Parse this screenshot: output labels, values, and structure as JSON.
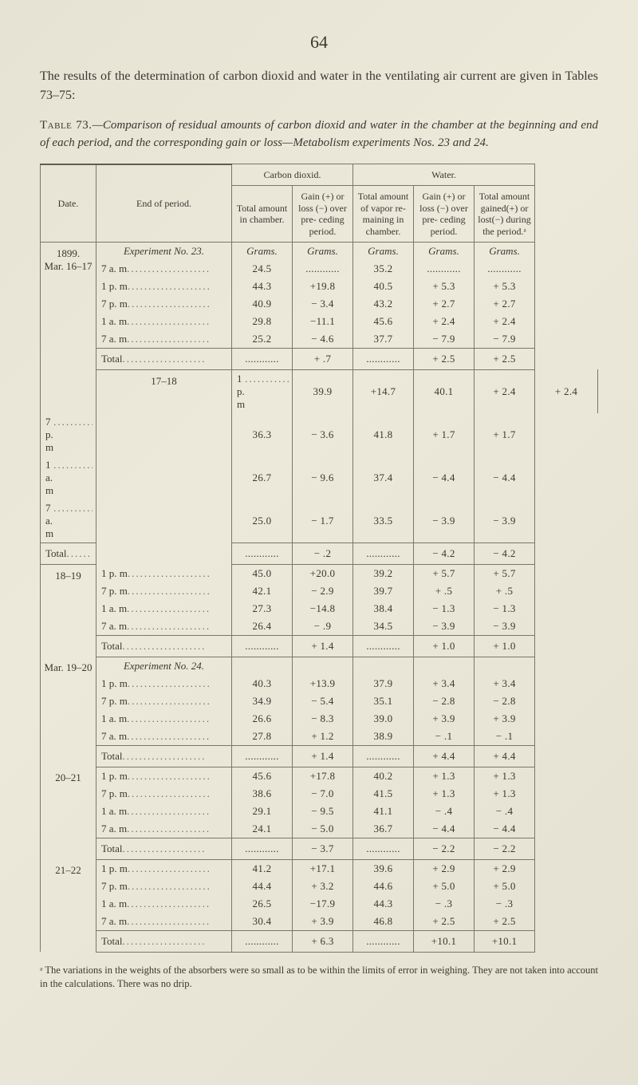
{
  "page_number": "64",
  "intro_html": "The results of the determination of carbon dioxid and water in the ventilating air current are given in Tables 73–75:",
  "caption": {
    "label": "Table 73.",
    "text": "—Comparison of residual amounts of carbon dioxid and water in the chamber at the beginning and end of each period, and the corresponding gain or loss—Metabolism experiments Nos. 23 and 24."
  },
  "headers": {
    "date": "Date.",
    "end": "End of period.",
    "carbon": "Carbon dioxid.",
    "water": "Water.",
    "total_chamber": "Total amount in chamber.",
    "gain_loss": "Gain (+) or loss (−) over pre- ceding period.",
    "water_total": "Total amount of vapor re- maining in chamber.",
    "water_gain": "Gain (+) or loss (−) over pre- ceding period.",
    "water_net": "Total amount gained(+) or lost(−) during the period.ᵃ",
    "grams": "Grams."
  },
  "blocks": [
    {
      "date": "1899.\nMar. 16–17",
      "experiment": "Experiment No. 23.",
      "rows": [
        {
          "label": "7 a. m",
          "c1": "24.5",
          "c2": "............",
          "w1": "35.2",
          "w2": "............",
          "w3": "............"
        },
        {
          "label": "1 p. m",
          "c1": "44.3",
          "c2": "+19.8",
          "w1": "40.5",
          "w2": "+ 5.3",
          "w3": "+ 5.3"
        },
        {
          "label": "7 p. m",
          "c1": "40.9",
          "c2": "− 3.4",
          "w1": "43.2",
          "w2": "+ 2.7",
          "w3": "+ 2.7"
        },
        {
          "label": "1 a. m",
          "c1": "29.8",
          "c2": "−11.1",
          "w1": "45.6",
          "w2": "+ 2.4",
          "w3": "+ 2.4"
        },
        {
          "label": "7 a. m",
          "c1": "25.2",
          "c2": "− 4.6",
          "w1": "37.7",
          "w2": "− 7.9",
          "w3": "− 7.9"
        }
      ],
      "total": {
        "label": "Total",
        "c1": "............",
        "c2": "+  .7",
        "w1": "............",
        "w2": "+ 2.5",
        "w3": "+ 2.5"
      }
    },
    {
      "date": "17–18",
      "rows": [
        {
          "label": "1 p. m",
          "c1": "39.9",
          "c2": "+14.7",
          "w1": "40.1",
          "w2": "+ 2.4",
          "w3": "+ 2.4"
        },
        {
          "label": "7 p. m",
          "c1": "36.3",
          "c2": "− 3.6",
          "w1": "41.8",
          "w2": "+ 1.7",
          "w3": "+ 1.7"
        },
        {
          "label": "1 a. m",
          "c1": "26.7",
          "c2": "− 9.6",
          "w1": "37.4",
          "w2": "− 4.4",
          "w3": "− 4.4"
        },
        {
          "label": "7 a. m",
          "c1": "25.0",
          "c2": "− 1.7",
          "w1": "33.5",
          "w2": "− 3.9",
          "w3": "− 3.9"
        }
      ],
      "total": {
        "label": "Total",
        "c1": "............",
        "c2": "−  .2",
        "w1": "............",
        "w2": "− 4.2",
        "w3": "− 4.2"
      }
    },
    {
      "date": "18–19",
      "rows": [
        {
          "label": "1 p. m",
          "c1": "45.0",
          "c2": "+20.0",
          "w1": "39.2",
          "w2": "+ 5.7",
          "w3": "+ 5.7"
        },
        {
          "label": "7 p. m",
          "c1": "42.1",
          "c2": "− 2.9",
          "w1": "39.7",
          "w2": "+  .5",
          "w3": "+  .5"
        },
        {
          "label": "1 a. m",
          "c1": "27.3",
          "c2": "−14.8",
          "w1": "38.4",
          "w2": "− 1.3",
          "w3": "− 1.3"
        },
        {
          "label": "7 a. m",
          "c1": "26.4",
          "c2": "−  .9",
          "w1": "34.5",
          "w2": "− 3.9",
          "w3": "− 3.9"
        }
      ],
      "total": {
        "label": "Total",
        "c1": "............",
        "c2": "+ 1.4",
        "w1": "............",
        "w2": "+ 1.0",
        "w3": "+ 1.0"
      }
    },
    {
      "date": "Mar. 19–20",
      "experiment": "Experiment No. 24.",
      "rows": [
        {
          "label": "1 p. m",
          "c1": "40.3",
          "c2": "+13.9",
          "w1": "37.9",
          "w2": "+ 3.4",
          "w3": "+ 3.4"
        },
        {
          "label": "7 p. m",
          "c1": "34.9",
          "c2": "− 5.4",
          "w1": "35.1",
          "w2": "− 2.8",
          "w3": "− 2.8"
        },
        {
          "label": "1 a. m",
          "c1": "26.6",
          "c2": "− 8.3",
          "w1": "39.0",
          "w2": "+ 3.9",
          "w3": "+ 3.9"
        },
        {
          "label": "7 a. m",
          "c1": "27.8",
          "c2": "+ 1.2",
          "w1": "38.9",
          "w2": "−  .1",
          "w3": "−  .1"
        }
      ],
      "total": {
        "label": "Total",
        "c1": "............",
        "c2": "+ 1.4",
        "w1": "............",
        "w2": "+ 4.4",
        "w3": "+ 4.4"
      }
    },
    {
      "date": "20–21",
      "rows": [
        {
          "label": "1 p. m",
          "c1": "45.6",
          "c2": "+17.8",
          "w1": "40.2",
          "w2": "+ 1.3",
          "w3": "+ 1.3"
        },
        {
          "label": "7 p. m",
          "c1": "38.6",
          "c2": "− 7.0",
          "w1": "41.5",
          "w2": "+ 1.3",
          "w3": "+ 1.3"
        },
        {
          "label": "1 a. m",
          "c1": "29.1",
          "c2": "− 9.5",
          "w1": "41.1",
          "w2": "−  .4",
          "w3": "−  .4"
        },
        {
          "label": "7 a. m",
          "c1": "24.1",
          "c2": "− 5.0",
          "w1": "36.7",
          "w2": "− 4.4",
          "w3": "− 4.4"
        }
      ],
      "total": {
        "label": "Total",
        "c1": "............",
        "c2": "− 3.7",
        "w1": "............",
        "w2": "− 2.2",
        "w3": "− 2.2"
      }
    },
    {
      "date": "21–22",
      "rows": [
        {
          "label": "1 p. m",
          "c1": "41.2",
          "c2": "+17.1",
          "w1": "39.6",
          "w2": "+ 2.9",
          "w3": "+ 2.9"
        },
        {
          "label": "7 p. m",
          "c1": "44.4",
          "c2": "+ 3.2",
          "w1": "44.6",
          "w2": "+ 5.0",
          "w3": "+ 5.0"
        },
        {
          "label": "1 a. m",
          "c1": "26.5",
          "c2": "−17.9",
          "w1": "44.3",
          "w2": "−  .3",
          "w3": "−  .3"
        },
        {
          "label": "7 a. m",
          "c1": "30.4",
          "c2": "+ 3.9",
          "w1": "46.8",
          "w2": "+ 2.5",
          "w3": "+ 2.5"
        }
      ],
      "total": {
        "label": "Total",
        "c1": "............",
        "c2": "+ 6.3",
        "w1": "............",
        "w2": "+10.1",
        "w3": "+10.1"
      }
    }
  ],
  "footnote": "ᵃ The variations in the weights of the absorbers were so small as to be within the limits of error in weighing. They are not taken into account in the calculations. There was no drip.",
  "style": {
    "background": "#e8e5d8",
    "text_color": "#3a3830",
    "rule_color": "#5f5c50",
    "body_fontsize": 16,
    "table_fontsize": 13
  }
}
